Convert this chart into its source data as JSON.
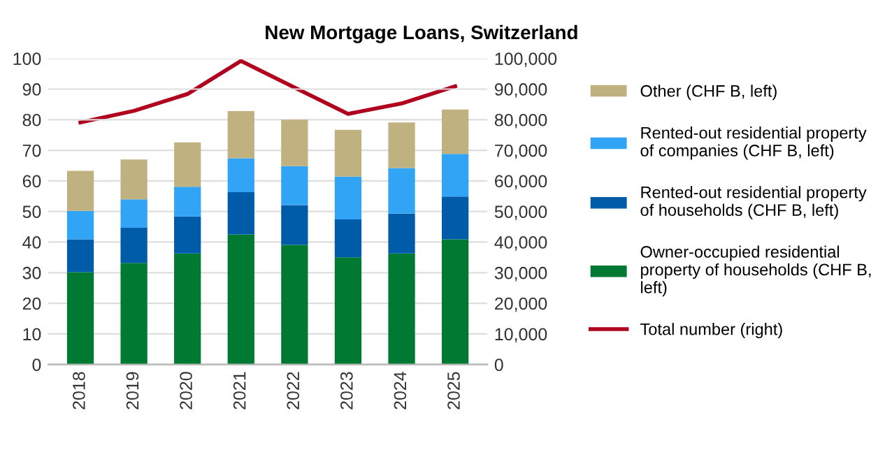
{
  "chart_data": {
    "type": "bar",
    "title": "New Mortgage Loans, Switzerland",
    "stacked": true,
    "categories": [
      "2018",
      "2019",
      "2020",
      "2021",
      "2022",
      "2023",
      "2024",
      "2025"
    ],
    "series": [
      {
        "name": "Owner-occupied residential\nproperty of households (CHF B,\nleft)",
        "color": "#007a33",
        "values": [
          30.2,
          33.2,
          36.3,
          42.5,
          39.1,
          35.0,
          36.3,
          40.9
        ]
      },
      {
        "name": "Rented-out residential property\nof households (CHF B, left)",
        "color": "#005ca8",
        "values": [
          10.7,
          11.5,
          12.1,
          13.8,
          13.0,
          12.4,
          13.0,
          14.0
        ]
      },
      {
        "name": "Rented-out residential property\nof companies (CHF B, left)",
        "color": "#31a4f5",
        "values": [
          9.3,
          9.3,
          9.7,
          11.1,
          12.7,
          14.0,
          14.9,
          13.9
        ]
      },
      {
        "name": "Other (CHF B, left)",
        "color": "#c0b280",
        "values": [
          13.1,
          13.0,
          14.5,
          15.4,
          15.2,
          15.3,
          14.9,
          14.5
        ]
      },
      {
        "name": "Total number (right)",
        "type": "line",
        "axis": "y2",
        "color": "#b0001e",
        "values": [
          79100,
          82900,
          88400,
          99200,
          90500,
          81900,
          85300,
          90900
        ]
      }
    ],
    "ylim": [
      0,
      100
    ],
    "yticks": [
      0,
      10,
      20,
      30,
      40,
      50,
      60,
      70,
      80,
      90,
      100
    ],
    "y2lim": [
      0,
      100000
    ],
    "y2ticks": [
      {
        "value": 0,
        "label": "0"
      },
      {
        "value": 10000,
        "label": "10,000"
      },
      {
        "value": 20000,
        "label": "20,000"
      },
      {
        "value": 30000,
        "label": "30,000"
      },
      {
        "value": 40000,
        "label": "40,000"
      },
      {
        "value": 50000,
        "label": "50,000"
      },
      {
        "value": 60000,
        "label": "60,000"
      },
      {
        "value": 70000,
        "label": "70,000"
      },
      {
        "value": 80000,
        "label": "80,000"
      },
      {
        "value": 90000,
        "label": "90,000"
      },
      {
        "value": 100000,
        "label": "100,000"
      }
    ],
    "grid": "y",
    "legend": "right"
  }
}
